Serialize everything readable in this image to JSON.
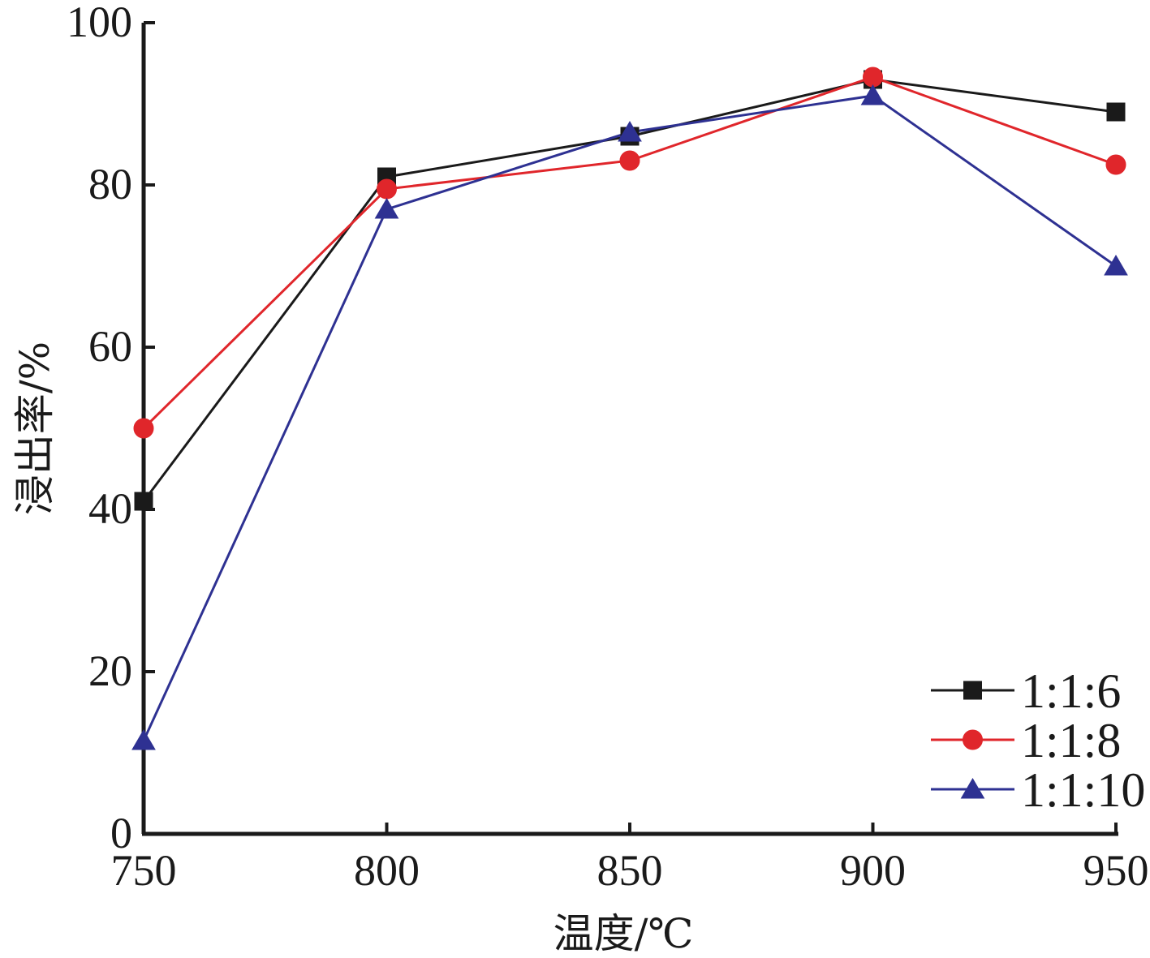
{
  "chart_data": {
    "type": "line",
    "xlabel": "温度/℃",
    "ylabel": "浸出率/%",
    "x": [
      750,
      800,
      850,
      900,
      950
    ],
    "xticks": [
      "750",
      "800",
      "850",
      "900",
      "950"
    ],
    "yticks": [
      "0",
      "20",
      "40",
      "60",
      "80",
      "100"
    ],
    "xlim": [
      750,
      950
    ],
    "ylim": [
      0,
      100
    ],
    "grid": false,
    "legend_position": "bottom-right",
    "series": [
      {
        "name": "1:1:6",
        "values": [
          41,
          81,
          86,
          93,
          89
        ],
        "color": "#1a1a1a",
        "marker": "square"
      },
      {
        "name": "1:1:8",
        "values": [
          50,
          79.5,
          83,
          93.3,
          82.5
        ],
        "color": "#e0262b",
        "marker": "circle"
      },
      {
        "name": "1:1:10",
        "values": [
          11.5,
          77,
          86.5,
          91,
          70
        ],
        "color": "#2e3192",
        "marker": "triangle"
      }
    ]
  }
}
